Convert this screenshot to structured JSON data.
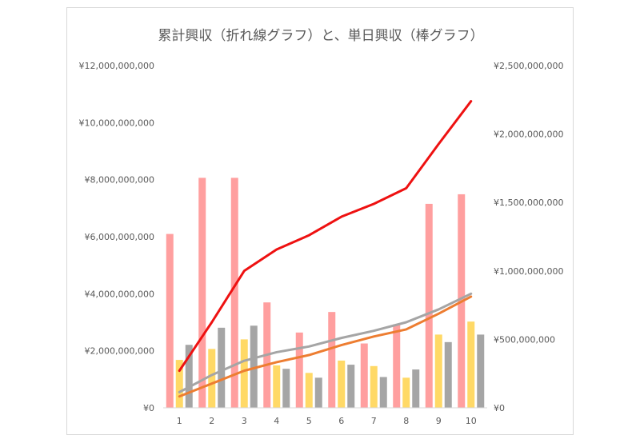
{
  "chart_data": {
    "type": "bar",
    "title": "累計興収（折れ線グラフ）と、単日興収（棒グラフ）",
    "categories": [
      "1",
      "2",
      "3",
      "4",
      "5",
      "6",
      "7",
      "8",
      "9",
      "10"
    ],
    "y_left": {
      "ticks": [
        "¥0",
        "¥2,000,000,000",
        "¥4,000,000,000",
        "¥6,000,000,000",
        "¥8,000,000,000",
        "¥10,000,000,000",
        "¥12,000,000,000"
      ],
      "range": [
        0,
        12000000000
      ]
    },
    "y_right": {
      "ticks": [
        "¥0",
        "¥500,000,000",
        "¥1,000,000,000",
        "¥1,500,000,000",
        "¥2,000,000,000",
        "¥2,500,000,000"
      ],
      "range": [
        0,
        2500000000
      ]
    },
    "bar_series": [
      {
        "color": "#ff9f9f",
        "values": [
          1270000000,
          1680000000,
          1680000000,
          770000000,
          550000000,
          700000000,
          470000000,
          610000000,
          1490000000,
          1560000000
        ]
      },
      {
        "color": "#ffd966",
        "values": [
          350000000,
          430000000,
          500000000,
          310000000,
          255000000,
          345000000,
          305000000,
          220000000,
          535000000,
          630000000
        ]
      },
      {
        "color": "#a5a5a5",
        "values": [
          460000000,
          585000000,
          600000000,
          285000000,
          220000000,
          315000000,
          225000000,
          280000000,
          480000000,
          535000000
        ]
      }
    ],
    "line_series": [
      {
        "color": "#ee1111",
        "values": [
          1300000000,
          3000000000,
          4800000000,
          5550000000,
          6050000000,
          6700000000,
          7150000000,
          7700000000,
          9250000000,
          10750000000
        ]
      },
      {
        "color": "#a5a5a5",
        "values": [
          550000000,
          1150000000,
          1650000000,
          1950000000,
          2150000000,
          2450000000,
          2700000000,
          3000000000,
          3450000000,
          4000000000
        ]
      },
      {
        "color": "#ed7d31",
        "values": [
          400000000,
          850000000,
          1300000000,
          1600000000,
          1850000000,
          2200000000,
          2500000000,
          2750000000,
          3300000000,
          3900000000
        ]
      }
    ],
    "grid": false,
    "legend": "none"
  }
}
